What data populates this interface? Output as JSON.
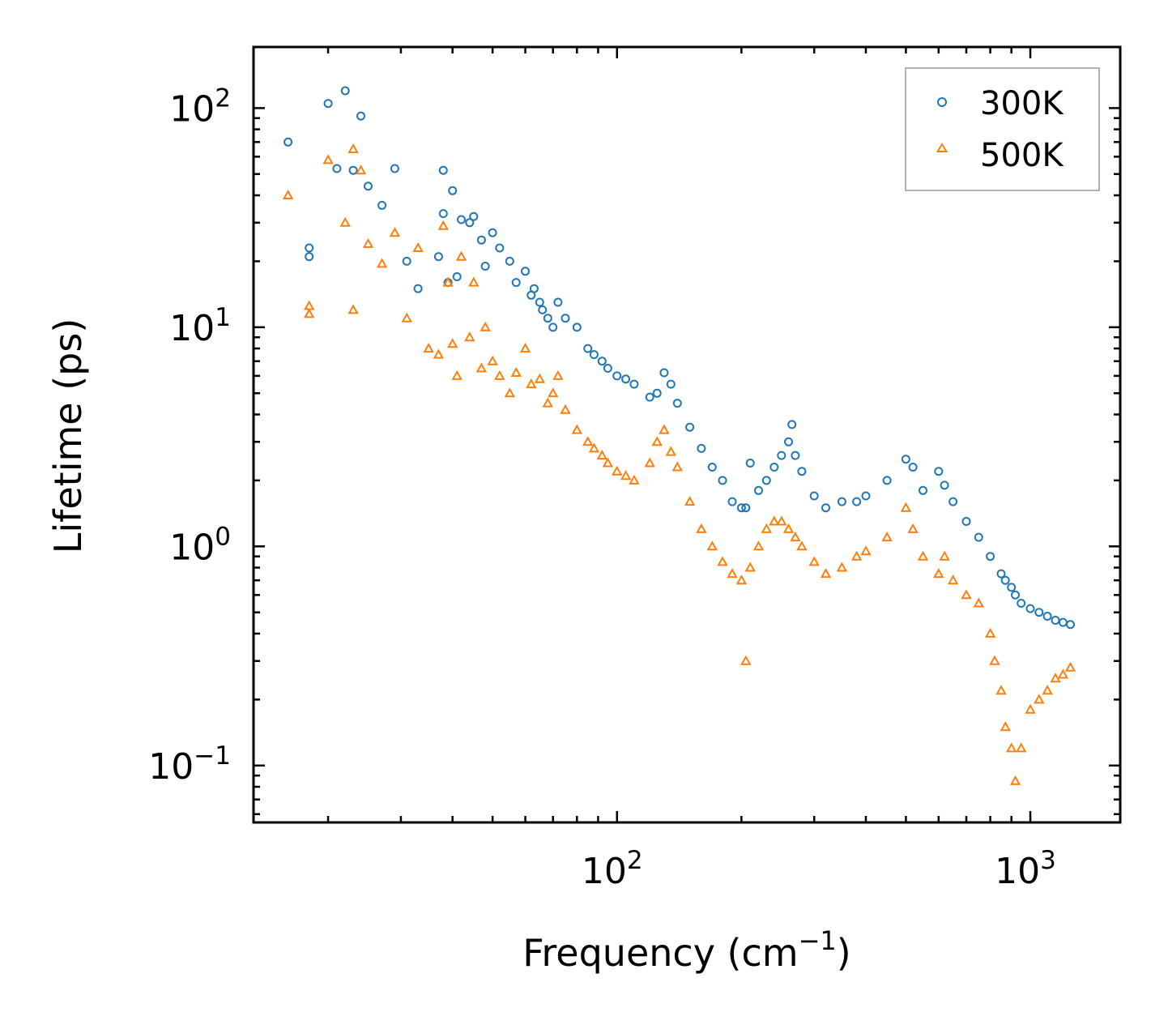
{
  "chart_data": {
    "type": "scatter",
    "title": "",
    "xlabel": "Frequency (cm",
    "xlabel_sup": "−1",
    "xlabel_end": ")",
    "ylabel": "Lifetime (ps)",
    "xscale": "log",
    "yscale": "log",
    "xlim": [
      13.2,
      1650
    ],
    "ylim": [
      0.055,
      190
    ],
    "x_ticks": [
      {
        "base": "10",
        "exp": "2",
        "value": 100
      },
      {
        "base": "10",
        "exp": "3",
        "value": 1000
      }
    ],
    "y_ticks": [
      {
        "base": "10",
        "exp": "2",
        "value": 100
      },
      {
        "base": "10",
        "exp": "1",
        "value": 10
      },
      {
        "base": "10",
        "exp": "0",
        "value": 1
      },
      {
        "base": "10",
        "exp": "−1",
        "value": 0.1
      }
    ],
    "legend_position": "top-right",
    "series": [
      {
        "name": "300K",
        "marker": "circle",
        "color": "#1f77b4",
        "x": [
          16,
          20,
          22,
          24,
          23,
          18,
          18,
          25,
          21,
          27,
          29,
          31,
          33,
          38,
          38,
          40,
          37,
          42,
          41,
          39,
          44,
          45,
          47,
          48,
          50,
          52,
          55,
          57,
          60,
          62,
          63,
          65,
          66,
          68,
          70,
          72,
          75,
          80,
          85,
          88,
          92,
          95,
          100,
          105,
          110,
          120,
          125,
          130,
          135,
          140,
          150,
          160,
          170,
          180,
          190,
          200,
          205,
          210,
          220,
          230,
          240,
          250,
          260,
          265,
          270,
          280,
          300,
          320,
          350,
          380,
          400,
          450,
          500,
          520,
          550,
          600,
          620,
          650,
          700,
          750,
          800,
          850,
          870,
          900,
          920,
          950,
          1000,
          1050,
          1100,
          1150,
          1200,
          1250
        ],
        "y": [
          70,
          105,
          120,
          92,
          52,
          23,
          21,
          44,
          53,
          36,
          53,
          20,
          15,
          52,
          33,
          42,
          21,
          31,
          17,
          16,
          30,
          32,
          25,
          19,
          27,
          23,
          20,
          16,
          18,
          14,
          15,
          13,
          12,
          11,
          10,
          13,
          11,
          10,
          8,
          7.5,
          7,
          6.5,
          6,
          5.8,
          5.5,
          4.8,
          5,
          6.2,
          5.5,
          4.5,
          3.5,
          2.8,
          2.3,
          2.0,
          1.6,
          1.5,
          1.5,
          2.4,
          1.8,
          2.0,
          2.3,
          2.6,
          3.0,
          3.6,
          2.6,
          2.2,
          1.7,
          1.5,
          1.6,
          1.6,
          1.7,
          2.0,
          2.5,
          2.3,
          1.8,
          2.2,
          1.9,
          1.6,
          1.3,
          1.1,
          0.9,
          0.75,
          0.7,
          0.65,
          0.6,
          0.55,
          0.52,
          0.5,
          0.48,
          0.46,
          0.45,
          0.44
        ]
      },
      {
        "name": "500K",
        "marker": "triangle",
        "color": "#ff7f0e",
        "x": [
          16,
          18,
          18,
          20,
          22,
          23,
          24,
          23,
          25,
          27,
          29,
          31,
          33,
          35,
          37,
          38,
          39,
          40,
          41,
          42,
          44,
          45,
          47,
          48,
          50,
          52,
          55,
          57,
          60,
          62,
          65,
          68,
          70,
          72,
          75,
          80,
          85,
          88,
          92,
          95,
          100,
          105,
          110,
          120,
          125,
          130,
          135,
          140,
          150,
          160,
          170,
          180,
          190,
          200,
          205,
          210,
          220,
          230,
          240,
          250,
          260,
          270,
          280,
          300,
          320,
          350,
          380,
          400,
          450,
          500,
          520,
          550,
          600,
          620,
          650,
          700,
          750,
          800,
          820,
          850,
          870,
          900,
          920,
          950,
          1000,
          1050,
          1100,
          1150,
          1200,
          1250
        ],
        "y": [
          40,
          12.5,
          11.5,
          58,
          30,
          65,
          52,
          12,
          24,
          19.5,
          27,
          11,
          23,
          8,
          7.5,
          29,
          16,
          8.4,
          6,
          21,
          9,
          16,
          6.5,
          10,
          7,
          6,
          5,
          6.2,
          8,
          5.5,
          5.8,
          4.5,
          5,
          6,
          4.2,
          3.4,
          3,
          2.8,
          2.6,
          2.4,
          2.2,
          2.1,
          2.0,
          2.4,
          3.0,
          3.4,
          2.7,
          2.3,
          1.6,
          1.2,
          1.0,
          0.85,
          0.75,
          0.7,
          0.3,
          0.8,
          1.0,
          1.2,
          1.3,
          1.3,
          1.2,
          1.1,
          1.0,
          0.85,
          0.75,
          0.8,
          0.9,
          0.95,
          1.1,
          1.5,
          1.2,
          0.9,
          0.75,
          0.9,
          0.7,
          0.6,
          0.55,
          0.4,
          0.3,
          0.22,
          0.15,
          0.12,
          0.085,
          0.12,
          0.18,
          0.2,
          0.22,
          0.25,
          0.26,
          0.28
        ]
      }
    ]
  }
}
